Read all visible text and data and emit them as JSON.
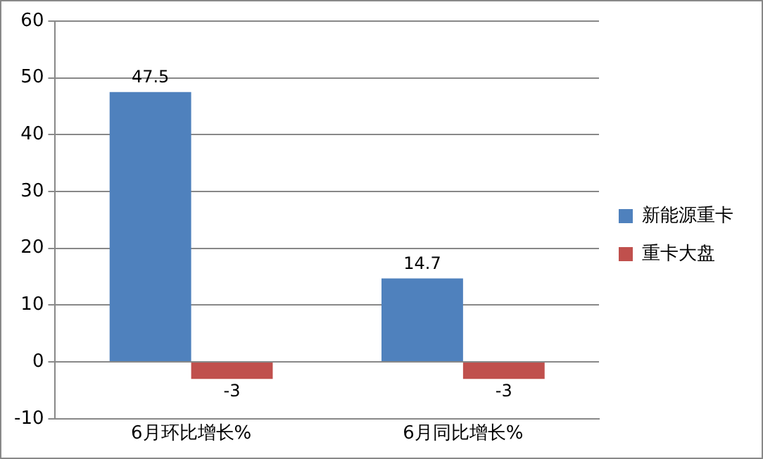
{
  "chart_data": {
    "type": "bar",
    "categories": [
      "6月环比增长%",
      "6月同比增长%"
    ],
    "series": [
      {
        "name": "新能源重卡",
        "color": "#4f81bd",
        "values": [
          47.5,
          14.7
        ]
      },
      {
        "name": "重卡大盘",
        "color": "#c0504d",
        "values": [
          -3,
          -3
        ]
      }
    ],
    "ylim": [
      -10,
      60
    ],
    "yticks": [
      -10,
      0,
      10,
      20,
      30,
      40,
      50,
      60
    ],
    "grid": "y",
    "legend": "right",
    "data_labels": true
  }
}
